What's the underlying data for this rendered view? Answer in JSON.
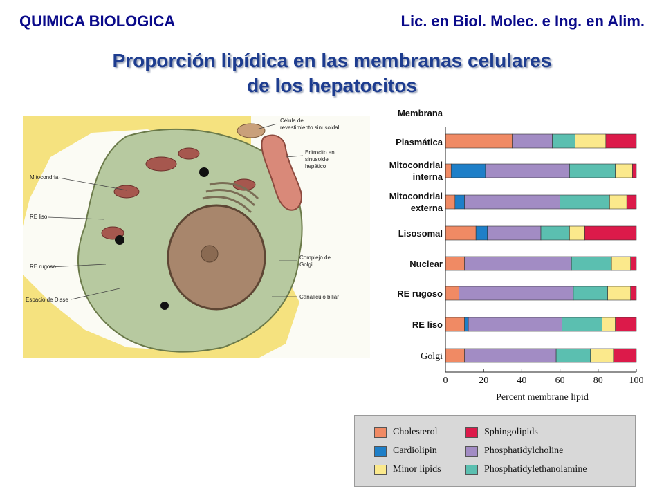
{
  "header": {
    "left": "QUIMICA BIOLOGICA",
    "right": "Lic. en Biol. Molec. e Ing. en Alim."
  },
  "title": {
    "line1": "Proporción lipídica en las membranas celulares",
    "line2": "de los hepatocitos"
  },
  "cell_figure": {
    "labels": {
      "mitocondria": "Mitocondria",
      "re_liso": "RE liso",
      "re_rugoso": "RE rugoso",
      "espacio_disse": "Espacio de Disse",
      "celula_rev_1": "Célula de",
      "celula_rev_2": "revestimiento sinusoidal",
      "eritrocito_1": "Eritrocito en",
      "eritrocito_2": "sinusoide",
      "eritrocito_3": "hepático",
      "golgi_1": "Complejo de",
      "golgi_2": "Golgi",
      "canaliculo": "Canalículo biliar"
    }
  },
  "chart_data": {
    "type": "bar",
    "orientation": "horizontal",
    "stacked": true,
    "categories": [
      "Membrana Plasmática",
      "Mitocondrial interna",
      "Mitocondrial externa",
      "Lisosomal",
      "Nuclear",
      "RE rugoso",
      "RE liso",
      "Golgi"
    ],
    "category_label_lines": [
      [
        "Membrana",
        "Plasmática"
      ],
      [
        "Mitocondrial",
        "interna"
      ],
      [
        "Mitocondrial",
        "externa"
      ],
      [
        "Lisosomal"
      ],
      [
        "Nuclear"
      ],
      [
        "RE rugoso"
      ],
      [
        "RE liso"
      ],
      [
        "Golgi"
      ]
    ],
    "series": [
      {
        "name": "Cholesterol",
        "color": "#f08a64",
        "values": [
          35,
          3,
          5,
          16,
          10,
          7,
          10,
          10
        ]
      },
      {
        "name": "Cardiolipin",
        "color": "#1e7fc8",
        "values": [
          0,
          18,
          5,
          6,
          0,
          0,
          2,
          0
        ]
      },
      {
        "name": "Phosphatidylcholine",
        "color": "#a28cc4",
        "values": [
          21,
          44,
          50,
          28,
          56,
          60,
          49,
          48
        ]
      },
      {
        "name": "Phosphatidylethanolamine",
        "color": "#5bbfb0",
        "values": [
          12,
          24,
          26,
          15,
          21,
          18,
          21,
          18
        ]
      },
      {
        "name": "Minor lipids",
        "color": "#fbe98c",
        "values": [
          16,
          9,
          9,
          8,
          10,
          12,
          7,
          12
        ]
      },
      {
        "name": "Sphingolipids",
        "color": "#dc1a4a",
        "values": [
          16,
          2,
          5,
          27,
          3,
          3,
          11,
          12
        ]
      }
    ],
    "xlim": [
      0,
      100
    ],
    "xticks": [
      "0",
      "20",
      "40",
      "60",
      "80",
      "100"
    ],
    "xlabel": "Percent membrane lipid",
    "legend": {
      "placement": "bottom",
      "order": [
        [
          "Cholesterol",
          "Sphingolipids"
        ],
        [
          "Cardiolipin",
          "Phosphatidylcholine"
        ],
        [
          "Minor lipids",
          "Phosphatidylethanolamine"
        ]
      ]
    }
  }
}
